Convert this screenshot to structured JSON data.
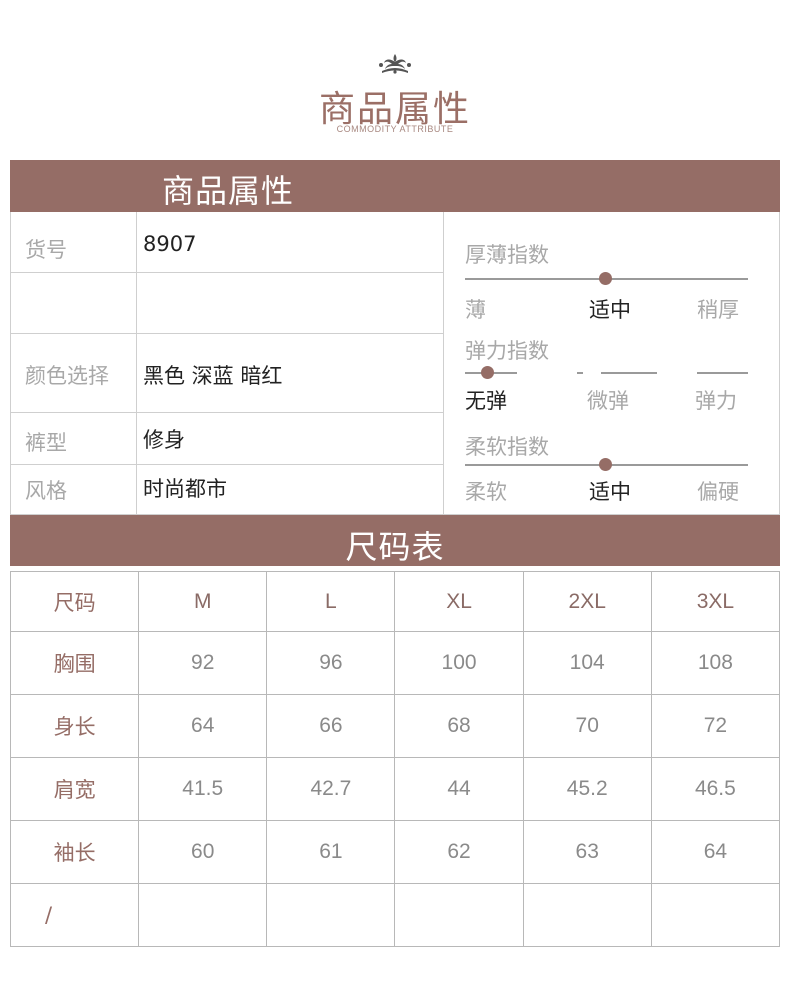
{
  "header": {
    "title": "商品属性",
    "subtitle": "COMMODITY ATTRIBUTE",
    "ornament_icon": "crown-ornament-icon"
  },
  "attributes": {
    "bar_title": "商品属性",
    "rows": [
      {
        "key": "货号",
        "value": "8907"
      },
      {
        "key": "",
        "value": ""
      },
      {
        "key": "颜色选择",
        "value": "黑色 深蓝 暗红"
      },
      {
        "key": "裤型",
        "value": "修身"
      },
      {
        "key": "风格",
        "value": "时尚都市"
      }
    ]
  },
  "indices": [
    {
      "title": "厚薄指数",
      "labels": [
        "薄",
        "适中",
        "稍厚"
      ],
      "selected": "适中",
      "level": 0.5
    },
    {
      "title": "弹力指数",
      "labels": [
        "无弹",
        "微弹",
        "弹力"
      ],
      "selected": "无弹",
      "level": 0.08
    },
    {
      "title": "柔软指数",
      "labels": [
        "柔软",
        "适中",
        "偏硬"
      ],
      "selected": "适中",
      "level": 0.5
    }
  ],
  "size_table": {
    "bar_title": "尺码表",
    "header": [
      "尺码",
      "M",
      "L",
      "XL",
      "2XL",
      "3XL"
    ],
    "rows": [
      {
        "label": "胸围",
        "values": [
          "92",
          "96",
          "100",
          "104",
          "108"
        ]
      },
      {
        "label": "身长",
        "values": [
          "64",
          "66",
          "68",
          "70",
          "72"
        ]
      },
      {
        "label": "肩宽",
        "values": [
          "41.5",
          "42.7",
          "44",
          "45.2",
          "46.5"
        ]
      },
      {
        "label": "袖长",
        "values": [
          "60",
          "61",
          "62",
          "63",
          "64"
        ]
      },
      {
        "label": "/",
        "values": [
          "",
          "",
          "",
          "",
          ""
        ]
      }
    ]
  },
  "colors": {
    "accent": "#956d66",
    "logo_text": "#9b6f66",
    "border": "#cfcfcf"
  }
}
